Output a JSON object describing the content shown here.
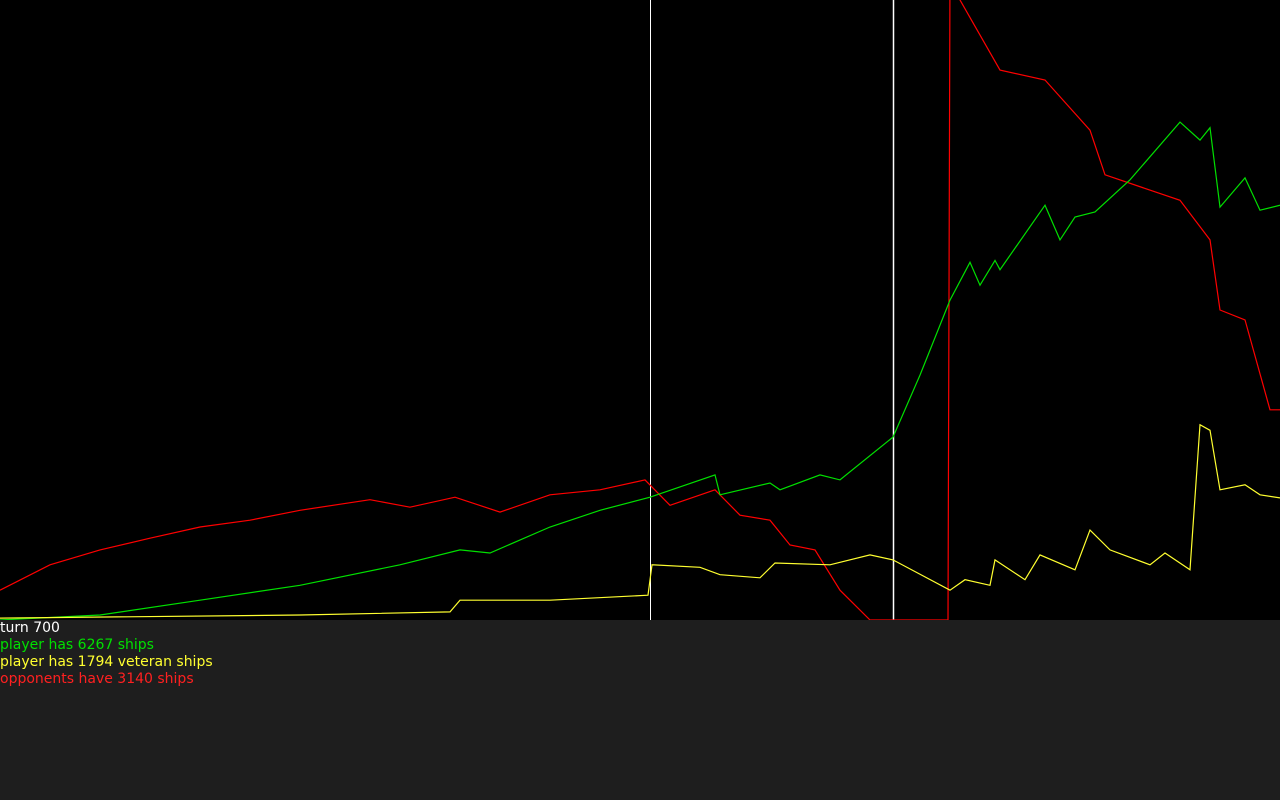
{
  "chart_data": {
    "type": "line",
    "xlim": [
      0,
      128
    ],
    "ylim": [
      0,
      100
    ],
    "series": [
      {
        "color": "#ff0000",
        "x": [
          0,
          5,
          10,
          15,
          20,
          25,
          30,
          37,
          41,
          45.5,
          50,
          55,
          60,
          64.5,
          67,
          71.5,
          74,
          77,
          79,
          81.5,
          84,
          87,
          89.3,
          94.8,
          95,
          96,
          100,
          104.5,
          109,
          110.5,
          118,
          121,
          122,
          124.5,
          127,
          128
        ],
        "values": [
          4.8,
          8.9,
          11.3,
          13.2,
          15,
          16.1,
          17.7,
          19.4,
          18.2,
          19.8,
          17.4,
          20.2,
          21,
          22.6,
          18.5,
          21,
          16.9,
          16.1,
          12.1,
          11.3,
          4.8,
          0,
          0,
          0,
          105,
          100,
          88.7,
          87.1,
          79,
          71.8,
          67.7,
          61.3,
          50,
          48.4,
          33.9,
          33.9
        ]
      },
      {
        "color": "#00e000",
        "x": [
          0,
          10,
          20,
          30,
          40,
          46,
          49,
          55,
          60,
          65,
          71.5,
          72,
          77,
          78,
          82,
          84,
          89.3,
          92,
          95,
          97,
          98,
          99.5,
          100,
          104.5,
          106,
          107.5,
          109.5,
          113,
          118,
          120,
          121,
          122,
          124.5,
          126,
          128
        ],
        "values": [
          0,
          0.8,
          3.2,
          5.6,
          8.9,
          11.3,
          10.8,
          15,
          17.7,
          19.8,
          23.4,
          20.2,
          22.1,
          21,
          23.4,
          22.6,
          29.5,
          39.5,
          51.6,
          57.7,
          54,
          58,
          56.5,
          66.9,
          61.3,
          65,
          65.8,
          71,
          80.3,
          77.4,
          79.4,
          66.6,
          71.3,
          66.1,
          66.9
        ]
      },
      {
        "color": "#ffff30",
        "x": [
          0,
          30,
          45,
          46,
          55,
          64.8,
          65.2,
          70,
          72,
          76,
          77.5,
          83,
          87,
          89.3,
          95,
          96.5,
          99,
          99.5,
          102.5,
          104,
          107.5,
          109,
          111,
          115,
          116.5,
          119,
          120,
          121,
          122,
          124.5,
          126,
          128
        ],
        "values": [
          0.3,
          0.8,
          1.3,
          3.2,
          3.2,
          4,
          8.9,
          8.5,
          7.3,
          6.8,
          9.2,
          8.9,
          10.5,
          9.7,
          4.8,
          6.5,
          5.6,
          9.7,
          6.5,
          10.5,
          8.1,
          14.5,
          11.3,
          8.9,
          10.8,
          8.1,
          31.5,
          30.6,
          21,
          21.8,
          20.2,
          19.7
        ]
      }
    ]
  },
  "status": [
    {
      "text": "turn 700",
      "color": "#ffffff"
    },
    {
      "text": "player has 6267 ships",
      "color": "#00e000"
    },
    {
      "text": "player has 1794 veteran ships",
      "color": "#ffff30"
    },
    {
      "text": "opponents have 3140 ships",
      "color": "#ff2020"
    }
  ]
}
